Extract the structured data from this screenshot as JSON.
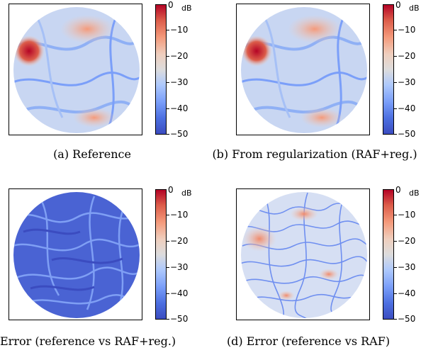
{
  "colorbar": {
    "unit": "dB",
    "ticks": [
      "0",
      "−10",
      "−20",
      "−30",
      "−40",
      "−50"
    ]
  },
  "panels": [
    {
      "caption": "(a) Reference"
    },
    {
      "caption": "(b) From regularization (RAF+reg.)"
    },
    {
      "caption": "Error (reference vs RAF+reg.)"
    },
    {
      "caption": "(d) Error (reference vs RAF)"
    }
  ],
  "colors": {
    "cmap_top": "#b40426",
    "cmap_mid": "#dddcdc",
    "cmap_bottom": "#3b4cc0"
  }
}
